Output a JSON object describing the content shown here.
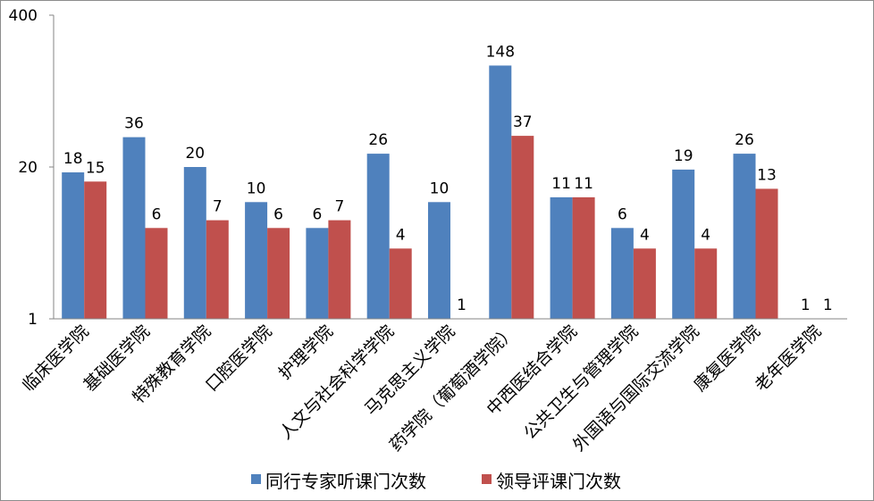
{
  "chart_data": {
    "type": "bar",
    "title": "",
    "xlabel": "",
    "ylabel": "",
    "y_scale": "log",
    "ylim": [
      1,
      400
    ],
    "yticks": [
      "1",
      "20",
      "400"
    ],
    "grid": false,
    "legend_position": "bottom",
    "categories": [
      "临床医学院",
      "基础医学院",
      "特殊教育学院",
      "口腔医学院",
      "护理学院",
      "人文与社会科学学院",
      "马克思主义学院",
      "药学院（葡萄酒学院）",
      "中西医结合学院",
      "公共卫生与管理学院",
      "外国语与国际交流学院",
      "康复医学院",
      "老年医学院"
    ],
    "series": [
      {
        "name": "同行专家听课门次数",
        "color": "#4f81bd",
        "values": [
          18,
          36,
          20,
          10,
          6,
          26,
          10,
          148,
          11,
          6,
          19,
          26,
          1
        ]
      },
      {
        "name": "领导评课门次数",
        "color": "#c0504d",
        "values": [
          15,
          6,
          7,
          6,
          7,
          4,
          1,
          37,
          11,
          4,
          4,
          13,
          1
        ]
      }
    ]
  }
}
